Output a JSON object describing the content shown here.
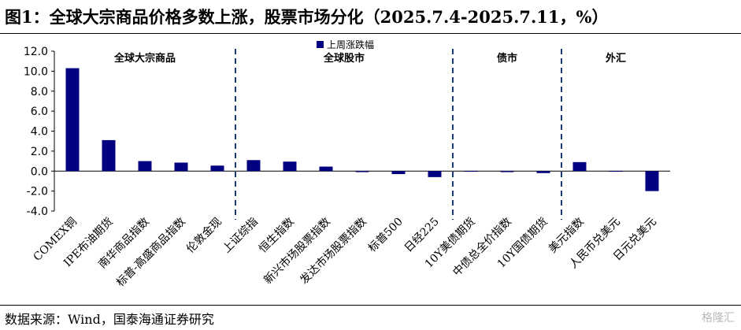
{
  "title": "图1：全球大宗商品价格多数上涨，股票市场分化（2025.7.4-2025.7.11，%）",
  "source": "数据来源：Wind，国泰海通证券研究",
  "watermark": "格隆汇",
  "chart_data": {
    "type": "bar",
    "categories": [
      "COMEX铜",
      "IPE布油期货",
      "南华商品指数",
      "标普-高盛商品指数",
      "伦敦金现",
      "上证综指",
      "恒生指数",
      "新兴市场股票指数",
      "发达市场股票指数",
      "标普500",
      "日经225",
      "10Y美债期货",
      "中债总全价指数",
      "10Y国债期货",
      "美元指数",
      "人民币兑美元",
      "日元兑美元"
    ],
    "series": [
      {
        "name": "上周涨跌幅",
        "values": [
          10.3,
          3.1,
          1.0,
          0.85,
          0.55,
          1.1,
          0.95,
          0.45,
          -0.1,
          -0.3,
          -0.6,
          0.0,
          -0.1,
          -0.2,
          0.9,
          0.0,
          -2.0
        ]
      }
    ],
    "ylim": [
      -4.0,
      12.0
    ],
    "yticks": [
      "12.0",
      "10.0",
      "8.0",
      "6.0",
      "4.0",
      "2.0",
      "0.0",
      "-2.0",
      "-4.0"
    ],
    "groups": [
      {
        "label": "全球大宗商品",
        "start": 0,
        "end": 4
      },
      {
        "label": "全球股市",
        "start": 5,
        "end": 10
      },
      {
        "label": "债市",
        "start": 11,
        "end": 13
      },
      {
        "label": "外汇",
        "start": 14,
        "end": 16
      }
    ],
    "legend": "top-center",
    "grid": false,
    "bar_color": "#000080",
    "divider_color": "#1f3a6e"
  }
}
